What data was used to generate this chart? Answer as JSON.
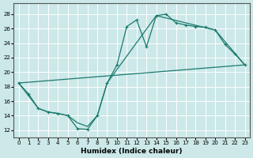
{
  "xlabel": "Humidex (Indice chaleur)",
  "bg_color": "#cce8e8",
  "line_color": "#1a7a6e",
  "grid_color": "#ffffff",
  "xlim": [
    -0.5,
    23.5
  ],
  "ylim": [
    11,
    29.5
  ],
  "xticks": [
    0,
    1,
    2,
    3,
    4,
    5,
    6,
    7,
    8,
    9,
    10,
    11,
    12,
    13,
    14,
    15,
    16,
    17,
    18,
    19,
    20,
    21,
    22,
    23
  ],
  "yticks": [
    12,
    14,
    16,
    18,
    20,
    22,
    24,
    26,
    28
  ],
  "line1_x": [
    0,
    1,
    2,
    3,
    4,
    5,
    6,
    7,
    8,
    9,
    10,
    11,
    12,
    13,
    14,
    15,
    16,
    17,
    18,
    19,
    20,
    21,
    22,
    23
  ],
  "line1_y": [
    18.5,
    17.0,
    15.0,
    14.5,
    14.3,
    14.0,
    12.2,
    12.1,
    14.0,
    18.5,
    21.0,
    26.3,
    27.2,
    23.5,
    27.8,
    28.0,
    26.8,
    26.5,
    26.3,
    26.2,
    25.8,
    23.8,
    22.5,
    21.0
  ],
  "line2_x": [
    0,
    2,
    3,
    4,
    5,
    6,
    7,
    8,
    9,
    14,
    20,
    23
  ],
  "line2_y": [
    18.5,
    15.0,
    14.5,
    14.3,
    14.0,
    13.0,
    12.5,
    14.0,
    18.5,
    27.8,
    25.8,
    21.0
  ],
  "line3_x": [
    0,
    23
  ],
  "line3_y": [
    18.5,
    21.0
  ]
}
